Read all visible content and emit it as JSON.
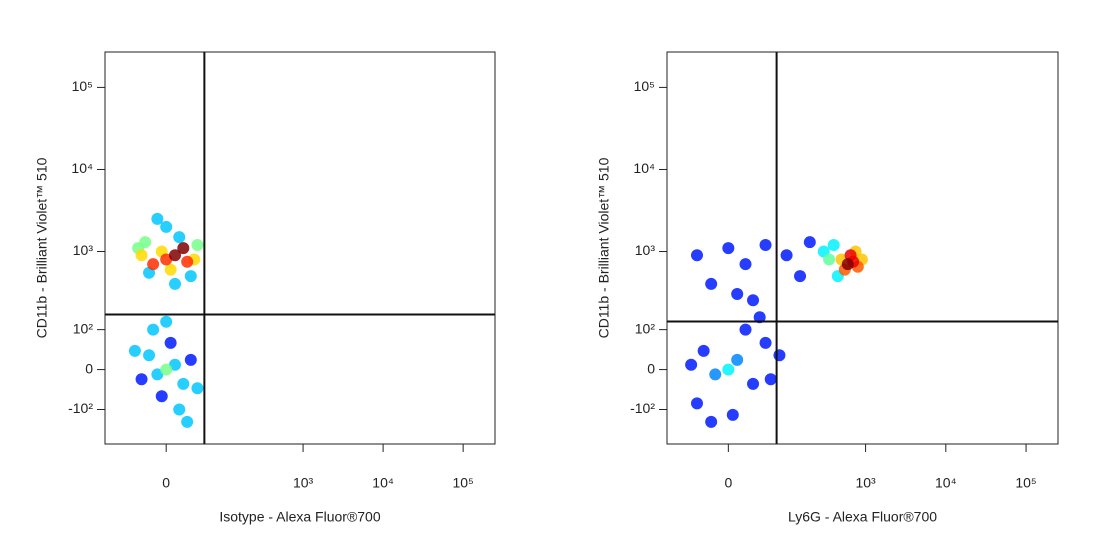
{
  "chart_data": [
    {
      "type": "scatter",
      "x_label": "Isotype - Alexa Fluor®700",
      "y_label": "CD11b - Brilliant Violet™ 510",
      "xscale": "biexponential",
      "yscale": "biexponential",
      "xlim": [
        -110,
        250000
      ],
      "ylim": [
        -290,
        270000
      ],
      "xticks": [
        0,
        {
          "value": 1000,
          "label": "10³"
        },
        {
          "value": 10000,
          "label": "10⁴"
        },
        {
          "value": 100000,
          "label": "10⁵"
        }
      ],
      "yticks": [
        {
          "value": -100,
          "label": "-10²"
        },
        0,
        {
          "value": 100,
          "label": "10²"
        },
        {
          "value": 1000,
          "label": "10³"
        },
        {
          "value": 10000,
          "label": "10⁴"
        },
        {
          "value": 100000,
          "label": "10⁵"
        }
      ],
      "gate": {
        "x": 52,
        "y": 163
      },
      "x": [
        0,
        10,
        -15,
        20,
        -25,
        5,
        30,
        -30,
        15,
        -5,
        25,
        -20,
        0,
        40,
        -35,
        10,
        -10,
        35,
        0,
        10,
        -10,
        20,
        -20,
        5,
        -5,
        30,
        -30,
        15,
        -15,
        40,
        -40,
        0,
        25
      ],
      "values": [
        800,
        900,
        700,
        1100,
        1300,
        600,
        500,
        900,
        1500,
        1000,
        750,
        550,
        2000,
        1200,
        1100,
        400,
        2500,
        800,
        0,
        10,
        -10,
        -30,
        30,
        60,
        -60,
        20,
        -20,
        -100,
        100,
        -40,
        40,
        130,
        -150
      ]
    },
    {
      "type": "scatter",
      "x_label": "Ly6G - Alexa Fluor®700",
      "y_label": "CD11b - Brilliant Violet™ 510",
      "xscale": "biexponential",
      "yscale": "biexponential",
      "xlim": [
        -110,
        250000
      ],
      "ylim": [
        -290,
        270000
      ],
      "xticks": [
        0,
        {
          "value": 1000,
          "label": "10³"
        },
        {
          "value": 10000,
          "label": "10⁴"
        },
        {
          "value": 100000,
          "label": "10⁵"
        }
      ],
      "yticks": [
        {
          "value": -100,
          "label": "-10²"
        },
        0,
        {
          "value": 100,
          "label": "10²"
        },
        {
          "value": 1000,
          "label": "10³"
        },
        {
          "value": 10000,
          "label": "10⁴"
        },
        {
          "value": 100000,
          "label": "10⁵"
        }
      ],
      "gate": {
        "x": 73,
        "y": 131
      },
      "x": [
        0,
        10,
        -15,
        30,
        -30,
        50,
        -40,
        20,
        5,
        60,
        -20,
        40,
        -50,
        80,
        -40,
        0,
        20,
        50,
        100,
        200,
        300,
        400,
        500,
        600,
        700,
        800,
        650,
        550,
        750,
        900,
        450,
        350,
        150,
        -20,
        10,
        30
      ],
      "values": [
        0,
        20,
        -10,
        -30,
        40,
        60,
        -80,
        100,
        -120,
        -20,
        -150,
        150,
        10,
        30,
        900,
        1100,
        700,
        1200,
        900,
        1300,
        1000,
        1200,
        800,
        700,
        750,
        650,
        900,
        600,
        1000,
        800,
        500,
        800,
        500,
        400,
        300,
        250
      ]
    }
  ]
}
